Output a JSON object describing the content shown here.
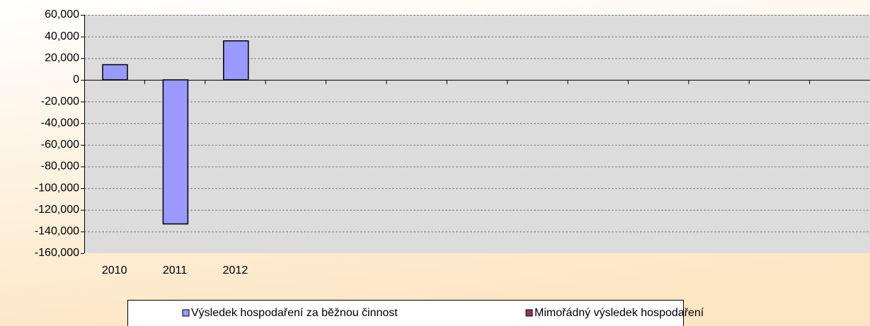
{
  "chart_data": {
    "type": "bar",
    "categories": [
      "2010",
      "2011",
      "2012",
      null,
      null,
      null,
      null,
      null,
      null,
      null,
      null,
      null,
      null
    ],
    "series": [
      {
        "name": "Výsledek hospodaření za běžnou činnost",
        "color": "#9999ff",
        "values": [
          14000,
          -133000,
          36000,
          null,
          null,
          null,
          null,
          null,
          null,
          null,
          null,
          null,
          null
        ]
      },
      {
        "name": "Mimořádný výsledek hospodaření",
        "color": "#993366",
        "values": [
          0,
          0,
          0,
          null,
          null,
          null,
          null,
          null,
          null,
          null,
          null,
          null,
          null
        ]
      }
    ],
    "ylim": [
      -160000,
      60000
    ],
    "yticks": [
      {
        "value": -160000,
        "label": "-160,000"
      },
      {
        "value": -140000,
        "label": "-140,000"
      },
      {
        "value": -120000,
        "label": "-120,000"
      },
      {
        "value": -100000,
        "label": "-100,000"
      },
      {
        "value": -80000,
        "label": "-80,000"
      },
      {
        "value": -60000,
        "label": "-60,000"
      },
      {
        "value": -40000,
        "label": "-40,000"
      },
      {
        "value": -20000,
        "label": "-20,000"
      },
      0,
      {
        "value": 20000,
        "label": "20,000"
      },
      {
        "value": 40000,
        "label": "40,000"
      },
      {
        "value": 60000,
        "label": "60,000"
      }
    ],
    "grid": true,
    "legend": "bottom"
  }
}
